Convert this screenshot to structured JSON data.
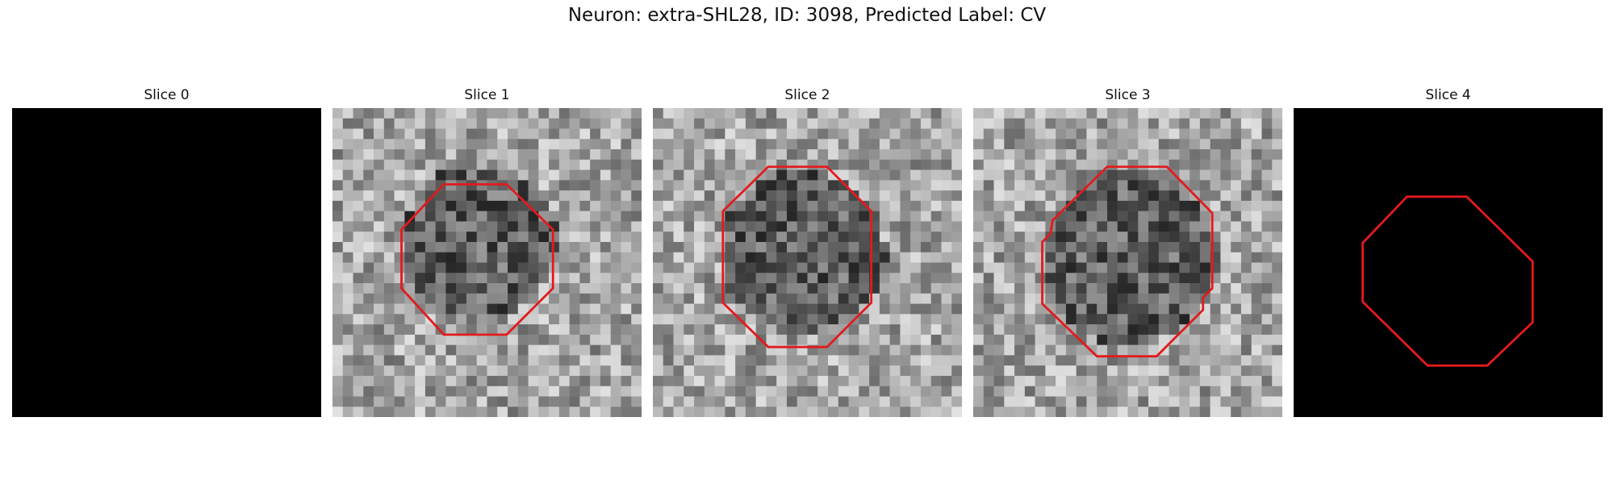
{
  "figure": {
    "title": "Neuron: extra-SHL28, ID: 3098, Predicted Label: CV",
    "contour_color": "#e31a1c"
  },
  "panels": [
    {
      "title": "Slice 0",
      "image": "blank"
    },
    {
      "title": "Slice 1",
      "image": "noise"
    },
    {
      "title": "Slice 2",
      "image": "noise"
    },
    {
      "title": "Slice 3",
      "image": "noise"
    },
    {
      "title": "Slice 4",
      "image": "blank"
    }
  ]
}
